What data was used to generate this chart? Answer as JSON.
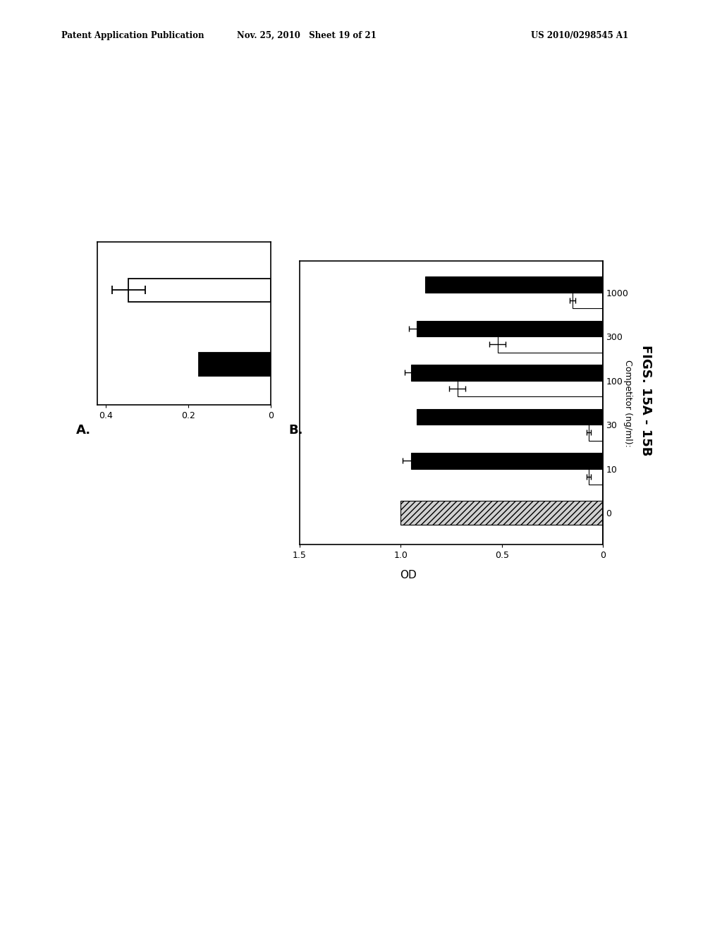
{
  "header_left": "Patent Application Publication",
  "header_mid": "Nov. 25, 2010   Sheet 19 of 21",
  "header_right": "US 2010/0298545 A1",
  "fig_label": "FIGS. 15A - 15B",
  "panel_a_label": "A.",
  "panel_b_label": "B.",
  "panel_b_ylabel": "OD",
  "panel_b_xlabel": "Competitor (ng/ml):",
  "panel_a": {
    "white_bar_val": 0.345,
    "white_bar_err": 0.04,
    "black_bar_val": 0.175,
    "black_bar_err": 0.0,
    "xlim_left": 0.42,
    "xlim_right": 0.0,
    "xticks": [
      0.4,
      0.2,
      0.0
    ],
    "xtick_labels": [
      "0.4",
      "0.2",
      "0"
    ]
  },
  "panel_b": {
    "groups": [
      {
        "label": "0",
        "black_val": 0.0,
        "black_err": 0.0,
        "white_val": 1.0,
        "white_err": 0.0,
        "is_control": true
      },
      {
        "label": "10",
        "black_val": 0.95,
        "black_err": 0.04,
        "white_val": 0.07,
        "white_err": 0.01
      },
      {
        "label": "30",
        "black_val": 0.92,
        "black_err": 0.0,
        "white_val": 0.07,
        "white_err": 0.01
      },
      {
        "label": "100",
        "black_val": 0.95,
        "black_err": 0.03,
        "white_val": 0.72,
        "white_err": 0.04
      },
      {
        "label": "300",
        "black_val": 0.92,
        "black_err": 0.04,
        "white_val": 0.52,
        "white_err": 0.04
      },
      {
        "label": "1000",
        "black_val": 0.88,
        "black_err": 0.0,
        "white_val": 0.15,
        "white_err": 0.015
      }
    ],
    "xlim": [
      1.5,
      0
    ],
    "xticks": [
      1.5,
      1.0,
      0.5,
      0
    ],
    "xtick_labels": [
      "1.5",
      "1.0",
      "0.5",
      "0"
    ]
  }
}
